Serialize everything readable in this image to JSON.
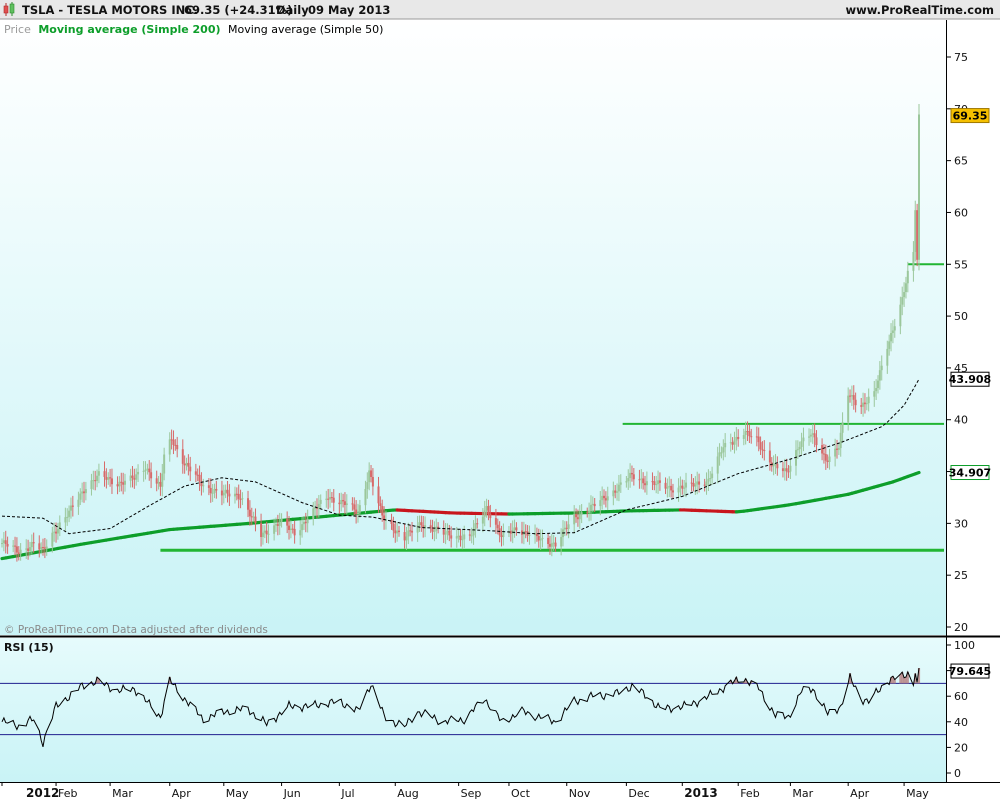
{
  "header": {
    "symbol": "TSLA - TESLA MOTORS INC.",
    "quote": "69.35 (+24.31%)",
    "period": "Daily",
    "date": "09 May 2013",
    "website": "www.ProRealTime.com"
  },
  "price_panel": {
    "legend_price": "Price",
    "legend_ma200": "Moving average (Simple 200)",
    "legend_ma50": "Moving average (Simple 50)",
    "footer": "© ProRealTime.com  Data adjusted after dividends"
  },
  "rsi_panel": {
    "title": "RSI (15)"
  },
  "colors": {
    "background": "#e3fafb",
    "ma200": "#0d9e2a",
    "ma200_down": "#c8161d",
    "ma50": "#000000",
    "candle_up": "#9bc79b",
    "candle_down": "#d76a6a",
    "support_line": "#22b533",
    "rsi_line": "#000000",
    "rsi_band": "#1f1f8f",
    "last_price_tag": "#f5c000"
  },
  "chart_data": [
    {
      "type": "candlestick",
      "title": "TSLA - TESLA MOTORS INC.",
      "ylim": [
        20,
        77
      ],
      "yticks": [
        20,
        25,
        30,
        35,
        40,
        45,
        50,
        55,
        60,
        65,
        70,
        75
      ],
      "x_tick_labels": [
        "2012",
        "Feb",
        "Mar",
        "Apr",
        "May",
        "Jun",
        "Jul",
        "Aug",
        "Sep",
        "Oct",
        "Nov",
        "Dec",
        "2013",
        "Feb",
        "Mar",
        "Apr",
        "May"
      ],
      "last_price": "69.35",
      "last_ma50": "43.908",
      "last_ma200": "34.907",
      "price_path": [
        [
          "2012-01-03",
          28.1
        ],
        [
          "2012-01-12",
          27.3
        ],
        [
          "2012-01-20",
          28.0
        ],
        [
          "2012-01-25",
          27.3
        ],
        [
          "2012-01-30",
          29.0
        ],
        [
          "2012-02-08",
          31.0
        ],
        [
          "2012-02-17",
          33.6
        ],
        [
          "2012-02-24",
          34.6
        ],
        [
          "2012-03-05",
          33.9
        ],
        [
          "2012-03-14",
          34.3
        ],
        [
          "2012-03-20",
          35.5
        ],
        [
          "2012-03-28",
          33.4
        ],
        [
          "2012-03-30",
          36.4
        ],
        [
          "2012-04-03",
          38.2
        ],
        [
          "2012-04-10",
          35.8
        ],
        [
          "2012-04-20",
          33.6
        ],
        [
          "2012-05-01",
          32.8
        ],
        [
          "2012-05-10",
          32.7
        ],
        [
          "2012-05-21",
          28.8
        ],
        [
          "2012-05-31",
          30.2
        ],
        [
          "2012-06-08",
          29.0
        ],
        [
          "2012-06-15",
          30.6
        ],
        [
          "2012-06-26",
          32.6
        ],
        [
          "2012-07-05",
          31.9
        ],
        [
          "2012-07-12",
          31.0
        ],
        [
          "2012-07-18",
          35.0
        ],
        [
          "2012-07-25",
          30.6
        ],
        [
          "2012-08-06",
          28.6
        ],
        [
          "2012-08-15",
          30.0
        ],
        [
          "2012-08-27",
          29.0
        ],
        [
          "2012-09-10",
          28.6
        ],
        [
          "2012-09-19",
          31.6
        ],
        [
          "2012-09-27",
          28.6
        ],
        [
          "2012-10-05",
          29.6
        ],
        [
          "2012-10-15",
          28.6
        ],
        [
          "2012-10-26",
          28.0
        ],
        [
          "2012-11-05",
          30.6
        ],
        [
          "2012-11-15",
          31.6
        ],
        [
          "2012-11-26",
          33.1
        ],
        [
          "2012-12-06",
          34.6
        ],
        [
          "2012-12-14",
          34.0
        ],
        [
          "2012-12-27",
          33.4
        ],
        [
          "2013-01-07",
          33.6
        ],
        [
          "2013-01-16",
          34.2
        ],
        [
          "2013-01-24",
          37.3
        ],
        [
          "2013-02-04",
          38.8
        ],
        [
          "2013-02-11",
          38.0
        ],
        [
          "2013-02-20",
          35.6
        ],
        [
          "2013-02-27",
          34.8
        ],
        [
          "2013-03-06",
          37.8
        ],
        [
          "2013-03-12",
          38.6
        ],
        [
          "2013-03-20",
          36.2
        ],
        [
          "2013-03-27",
          37.4
        ],
        [
          "2013-04-01",
          42.4
        ],
        [
          "2013-04-08",
          41.4
        ],
        [
          "2013-04-15",
          42.4
        ],
        [
          "2013-04-22",
          47.2
        ],
        [
          "2013-04-30",
          51.5
        ],
        [
          "2013-05-03",
          54.0
        ],
        [
          "2013-05-06",
          56.0
        ],
        [
          "2013-05-07",
          60.5
        ],
        [
          "2013-05-08",
          55.6
        ],
        [
          "2013-05-09",
          69.35
        ]
      ],
      "ma200_path": [
        [
          "2012-01-03",
          26.6
        ],
        [
          "2012-02-15",
          28.0
        ],
        [
          "2012-04-02",
          29.4
        ],
        [
          "2012-05-15",
          30.0
        ],
        [
          "2012-07-02",
          30.8
        ],
        [
          "2012-08-01",
          31.3
        ],
        [
          "2012-09-01",
          31.0
        ],
        [
          "2012-10-01",
          30.9
        ],
        [
          "2012-11-05",
          31.0
        ],
        [
          "2012-12-03",
          31.2
        ],
        [
          "2013-01-02",
          31.3
        ],
        [
          "2013-02-01",
          31.1
        ],
        [
          "2013-03-01",
          31.8
        ],
        [
          "2013-04-01",
          32.8
        ],
        [
          "2013-04-25",
          34.0
        ],
        [
          "2013-05-09",
          34.907
        ]
      ],
      "ma50_path": [
        [
          "2012-01-03",
          30.7
        ],
        [
          "2012-01-25",
          30.5
        ],
        [
          "2012-02-08",
          29.0
        ],
        [
          "2012-03-01",
          29.5
        ],
        [
          "2012-03-20",
          31.5
        ],
        [
          "2012-04-10",
          33.6
        ],
        [
          "2012-04-30",
          34.4
        ],
        [
          "2012-05-18",
          34.0
        ],
        [
          "2012-06-12",
          32.0
        ],
        [
          "2012-07-02",
          30.8
        ],
        [
          "2012-07-20",
          30.6
        ],
        [
          "2012-08-15",
          29.6
        ],
        [
          "2012-09-20",
          29.3
        ],
        [
          "2012-10-15",
          29.0
        ],
        [
          "2012-11-05",
          29.1
        ],
        [
          "2012-12-03",
          31.3
        ],
        [
          "2013-01-02",
          32.6
        ],
        [
          "2013-02-01",
          34.8
        ],
        [
          "2013-03-01",
          36.2
        ],
        [
          "2013-03-28",
          37.8
        ],
        [
          "2013-04-20",
          39.4
        ],
        [
          "2013-05-01",
          41.4
        ],
        [
          "2013-05-09",
          43.908
        ]
      ],
      "horizontal_lines": [
        {
          "y": 27.4,
          "from": "2012-03-28",
          "to": "2013-05-28"
        },
        {
          "y": 39.6,
          "from": "2012-12-01",
          "to": "2013-05-28"
        },
        {
          "y": 55.0,
          "from": "2013-05-03",
          "to": "2013-05-28"
        }
      ]
    },
    {
      "type": "line",
      "title": "RSI (15)",
      "ylim": [
        0,
        100
      ],
      "yticks": [
        0,
        20,
        40,
        60,
        80,
        100
      ],
      "bands": [
        30,
        70
      ],
      "last_value": "79.645",
      "rsi_path": [
        [
          "2012-01-03",
          40
        ],
        [
          "2012-01-13",
          37
        ],
        [
          "2012-01-20",
          42
        ],
        [
          "2012-01-25",
          24
        ],
        [
          "2012-02-01",
          52
        ],
        [
          "2012-02-15",
          68
        ],
        [
          "2012-02-24",
          72
        ],
        [
          "2012-03-05",
          64
        ],
        [
          "2012-03-14",
          66
        ],
        [
          "2012-03-28",
          44
        ],
        [
          "2012-04-02",
          72
        ],
        [
          "2012-04-10",
          58
        ],
        [
          "2012-04-20",
          42
        ],
        [
          "2012-05-01",
          48
        ],
        [
          "2012-05-14",
          50
        ],
        [
          "2012-05-24",
          38
        ],
        [
          "2012-06-05",
          52
        ],
        [
          "2012-06-15",
          52
        ],
        [
          "2012-07-02",
          56
        ],
        [
          "2012-07-12",
          48
        ],
        [
          "2012-07-19",
          70
        ],
        [
          "2012-07-26",
          44
        ],
        [
          "2012-08-06",
          36
        ],
        [
          "2012-08-13",
          48
        ],
        [
          "2012-08-27",
          40
        ],
        [
          "2012-09-07",
          42
        ],
        [
          "2012-09-18",
          58
        ],
        [
          "2012-09-27",
          40
        ],
        [
          "2012-10-08",
          48
        ],
        [
          "2012-10-17",
          44
        ],
        [
          "2012-10-26",
          40
        ],
        [
          "2012-11-05",
          56
        ],
        [
          "2012-11-15",
          60
        ],
        [
          "2012-11-28",
          62
        ],
        [
          "2012-12-06",
          68
        ],
        [
          "2012-12-14",
          60
        ],
        [
          "2012-12-21",
          50
        ],
        [
          "2013-01-03",
          52
        ],
        [
          "2013-01-14",
          58
        ],
        [
          "2013-01-28",
          70
        ],
        [
          "2013-02-04",
          74
        ],
        [
          "2013-02-12",
          66
        ],
        [
          "2013-02-21",
          45
        ],
        [
          "2013-02-28",
          44
        ],
        [
          "2013-03-07",
          64
        ],
        [
          "2013-03-13",
          66
        ],
        [
          "2013-03-21",
          46
        ],
        [
          "2013-03-28",
          52
        ],
        [
          "2013-04-02",
          74
        ],
        [
          "2013-04-08",
          58
        ],
        [
          "2013-04-12",
          56
        ],
        [
          "2013-04-22",
          72
        ],
        [
          "2013-04-30",
          76
        ],
        [
          "2013-05-03",
          78
        ],
        [
          "2013-05-06",
          70
        ],
        [
          "2013-05-07",
          80
        ],
        [
          "2013-05-08",
          68
        ],
        [
          "2013-05-09",
          79.645
        ]
      ]
    }
  ]
}
